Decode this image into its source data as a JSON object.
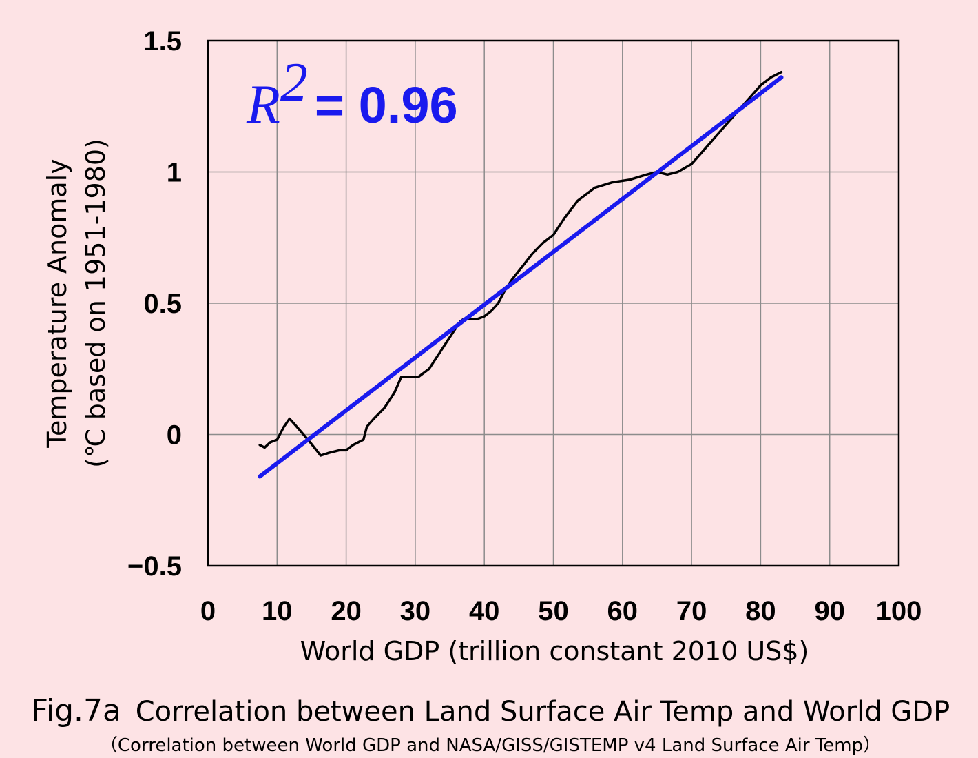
{
  "chart_data": {
    "type": "line",
    "xlabel": "World GDP (trillion constant 2010 US$)",
    "ylabel": [
      "Temperature Anomaly",
      "(℃ based on 1951-1980)"
    ],
    "xlim": [
      0,
      100
    ],
    "ylim": [
      -0.5,
      1.5
    ],
    "x_ticks": [
      0,
      10,
      20,
      30,
      40,
      50,
      60,
      70,
      80,
      90,
      100
    ],
    "x_tick_labels": [
      "0",
      "10",
      "20",
      "30",
      "40",
      "50",
      "60",
      "70",
      "80",
      "90",
      "100"
    ],
    "y_ticks": [
      -0.5,
      0,
      0.5,
      1,
      1.5
    ],
    "y_tick_labels": [
      "−0.5",
      "0",
      "0.5",
      "1",
      "1.5"
    ],
    "grid": true,
    "annotation": {
      "r_symbol": "R",
      "superscript": "2",
      "value_text": "= 0.96"
    },
    "series": [
      {
        "kind": "data-line",
        "color": "#000000",
        "x": [
          7.5,
          8.2,
          9.0,
          10.0,
          11.0,
          11.8,
          12.5,
          13.5,
          14.8,
          16.3,
          17.5,
          19.0,
          20.0,
          21.0,
          22.5,
          23.0,
          24.0,
          25.5,
          27.0,
          28.0,
          29.0,
          30.5,
          32.0,
          33.5,
          35.0,
          36.5,
          37.0,
          38.0,
          39.0,
          40.0,
          41.0,
          42.0,
          43.0,
          44.0,
          45.5,
          47.0,
          48.5,
          50.0,
          51.5,
          53.5,
          56.0,
          58.5,
          61.0,
          63.5,
          65.0,
          66.5,
          68.0,
          70.0,
          72.0,
          74.0,
          76.0,
          78.0,
          80.0,
          81.5,
          83.0
        ],
        "y": [
          -0.04,
          -0.05,
          -0.03,
          -0.02,
          0.03,
          0.06,
          0.04,
          0.01,
          -0.03,
          -0.08,
          -0.07,
          -0.06,
          -0.06,
          -0.04,
          -0.02,
          0.03,
          0.06,
          0.1,
          0.16,
          0.22,
          0.22,
          0.22,
          0.25,
          0.31,
          0.37,
          0.43,
          0.44,
          0.44,
          0.44,
          0.45,
          0.47,
          0.5,
          0.55,
          0.59,
          0.64,
          0.69,
          0.73,
          0.76,
          0.82,
          0.89,
          0.94,
          0.96,
          0.97,
          0.99,
          1.0,
          0.99,
          1.0,
          1.03,
          1.09,
          1.15,
          1.21,
          1.27,
          1.33,
          1.36,
          1.38
        ]
      },
      {
        "kind": "regression-line",
        "color": "#1a1aee",
        "x": [
          7.5,
          83.0
        ],
        "y": [
          -0.16,
          1.36
        ]
      }
    ]
  },
  "caption": {
    "fig_label": "Fig.7a",
    "title": "Correlation between Land Surface Air Temp and World GDP",
    "subtitle": "（Correlation between World GDP and NASA/GISS/GISTEMP v4 Land Surface Air Temp）"
  }
}
